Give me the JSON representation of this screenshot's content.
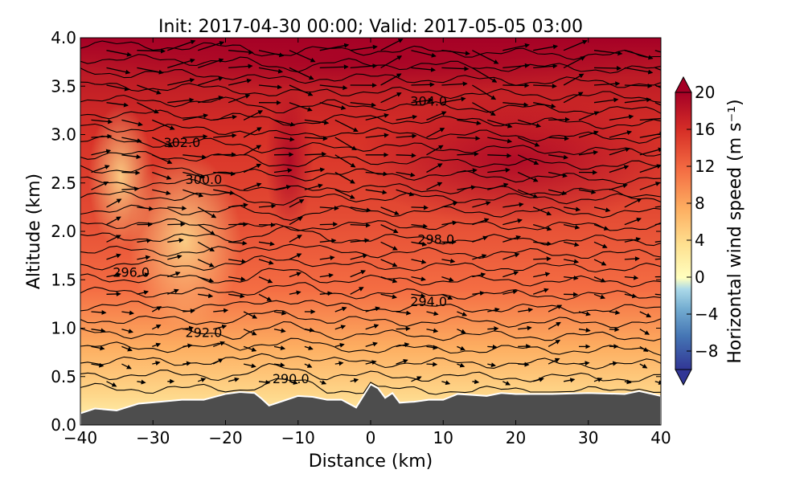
{
  "chart_data": {
    "type": "heatmap",
    "title": "Init: 2017-04-30 00:00; Valid: 2017-05-05 03:00",
    "xlabel": "Distance (km)",
    "ylabel": "Altitude (km)",
    "xlim": [
      -40,
      40
    ],
    "ylim": [
      0.0,
      4.0
    ],
    "x_ticks": [
      "−40",
      "−30",
      "−20",
      "−10",
      "0",
      "10",
      "20",
      "30",
      "40"
    ],
    "y_ticks": [
      "0.0",
      "0.5",
      "1.0",
      "1.5",
      "2.0",
      "2.5",
      "3.0",
      "3.5",
      "4.0"
    ],
    "colorbar": {
      "label": "Horizontal wind speed (m s⁻¹)",
      "range": [
        -10,
        20
      ],
      "ticks": [
        "−8",
        "−4",
        "0",
        "4",
        "8",
        "12",
        "16",
        "20"
      ],
      "tick_values": [
        -8,
        -4,
        0,
        4,
        8,
        12,
        16,
        20
      ],
      "colormap": "RdYlBu_r",
      "extend": "both"
    },
    "filled_field": "horizontal wind speed",
    "contour_field": "potential temperature",
    "contour_labels": [
      {
        "text": "290.0",
        "x": -11,
        "y": 0.48
      },
      {
        "text": "292.0",
        "x": -23,
        "y": 0.96
      },
      {
        "text": "294.0",
        "x": 8,
        "y": 1.28
      },
      {
        "text": "296.0",
        "x": -33,
        "y": 1.58
      },
      {
        "text": "298.0",
        "x": 9,
        "y": 1.92
      },
      {
        "text": "300.0",
        "x": -23,
        "y": 2.54
      },
      {
        "text": "302.0",
        "x": -26,
        "y": 2.92
      },
      {
        "text": "304.0",
        "x": 8,
        "y": 3.35
      }
    ],
    "terrain": {
      "color": "#4d4d4d",
      "x": [
        -40,
        -38,
        -35,
        -32,
        -29,
        -26,
        -23,
        -20,
        -18,
        -16,
        -15,
        -14,
        -12,
        -10,
        -8,
        -6,
        -4,
        -2,
        -1,
        0,
        1,
        2,
        3,
        4,
        6,
        8,
        10,
        12,
        14,
        16,
        18,
        20,
        25,
        30,
        35,
        37,
        40
      ],
      "y": [
        0.12,
        0.17,
        0.15,
        0.22,
        0.24,
        0.26,
        0.26,
        0.32,
        0.34,
        0.33,
        0.27,
        0.2,
        0.25,
        0.3,
        0.29,
        0.26,
        0.26,
        0.18,
        0.3,
        0.42,
        0.38,
        0.28,
        0.33,
        0.23,
        0.24,
        0.26,
        0.26,
        0.32,
        0.31,
        0.3,
        0.33,
        0.32,
        0.32,
        0.33,
        0.32,
        0.35,
        0.3
      ]
    }
  }
}
